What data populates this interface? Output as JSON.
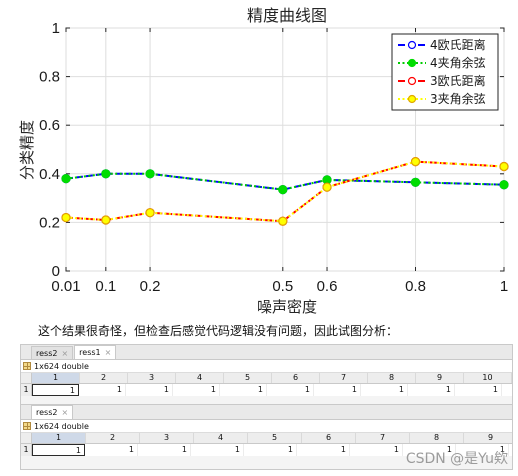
{
  "chart_data": {
    "type": "line",
    "title": "精度曲线图",
    "xlabel": "噪声密度",
    "ylabel": "分类精度",
    "x": [
      0.01,
      0.1,
      0.2,
      0.5,
      0.6,
      0.8,
      1
    ],
    "x_tick_labels": [
      "0.01",
      "0.1",
      "0.2",
      "0.5",
      "0.6",
      "0.8",
      "1"
    ],
    "y_ticks": [
      0,
      0.2,
      0.4,
      0.6,
      0.8,
      1
    ],
    "y_tick_labels": [
      "0",
      "0.2",
      "0.4",
      "0.6",
      "0.8",
      "1"
    ],
    "ylim": [
      0,
      1
    ],
    "grid": true,
    "legend_position": "top-right",
    "series": [
      {
        "name": "4欧氏距离",
        "values": [
          0.38,
          0.4,
          0.4,
          0.335,
          0.375,
          0.365,
          0.355
        ],
        "line_color": "#0000ff",
        "marker_color": "#0000ff",
        "marker_fill": "#ffffff",
        "style": "dashed"
      },
      {
        "name": "4夹角余弦",
        "values": [
          0.38,
          0.4,
          0.4,
          0.335,
          0.375,
          0.365,
          0.355
        ],
        "line_color": "#00cc00",
        "marker_color": "#00dd00",
        "marker_fill": "#00dd00",
        "style": "dotted"
      },
      {
        "name": "3欧氏距离",
        "values": [
          0.22,
          0.21,
          0.24,
          0.205,
          0.345,
          0.45,
          0.43
        ],
        "line_color": "#ff0000",
        "marker_color": "#ff0000",
        "marker_fill": "#ffffff",
        "style": "dashed"
      },
      {
        "name": "3夹角余弦",
        "values": [
          0.22,
          0.21,
          0.24,
          0.205,
          0.345,
          0.45,
          0.43
        ],
        "line_color": "#ffff00",
        "marker_color": "#e0a800",
        "marker_fill": "#ffff00",
        "style": "dotted"
      }
    ]
  },
  "caption": "这个结果很奇怪，但检查后感觉代码逻辑没有问题，因此试图分析：",
  "panel1": {
    "tabs": [
      {
        "label": "ress2",
        "active": false
      },
      {
        "label": "ress1",
        "active": true
      }
    ],
    "info": "1x624 double",
    "col_headers": [
      "1",
      "2",
      "3",
      "4",
      "5",
      "6",
      "7",
      "8",
      "9",
      "10"
    ],
    "row_header": "1",
    "values": [
      "1",
      "1",
      "1",
      "1",
      "1",
      "1",
      "1",
      "1",
      "1",
      "1"
    ]
  },
  "panel2": {
    "tabs": [
      {
        "label": "ress2",
        "active": true
      }
    ],
    "info": "1x624 double",
    "col_headers": [
      "1",
      "2",
      "3",
      "4",
      "5",
      "6",
      "7",
      "8",
      "9"
    ],
    "row_header": "1",
    "values": [
      "1",
      "1",
      "1",
      "1",
      "1",
      "1",
      "1",
      "1",
      "1"
    ]
  },
  "close_glyph": "×",
  "watermark": "CSDN @是Yu欸"
}
